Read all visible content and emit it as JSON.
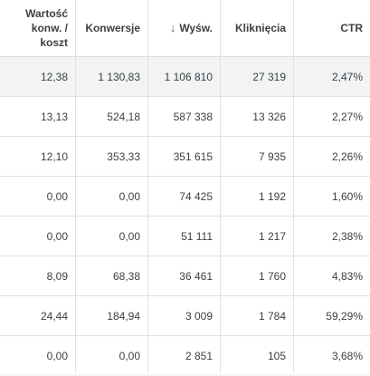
{
  "headers": {
    "value_per_cost": "Wartość konw. / koszt",
    "conversions": "Konwersje",
    "impressions": "Wyśw.",
    "clicks": "Kliknięcia",
    "ctr": "CTR"
  },
  "sort": {
    "column": "impressions",
    "icon": "arrow-down-icon",
    "glyph": "↓"
  },
  "rows": [
    {
      "value_per_cost": "12,38",
      "conversions": "1 130,83",
      "impressions": "1 106 810",
      "clicks": "27 319",
      "ctr": "2,47%"
    },
    {
      "value_per_cost": "13,13",
      "conversions": "524,18",
      "impressions": "587 338",
      "clicks": "13 326",
      "ctr": "2,27%"
    },
    {
      "value_per_cost": "12,10",
      "conversions": "353,33",
      "impressions": "351 615",
      "clicks": "7 935",
      "ctr": "2,26%"
    },
    {
      "value_per_cost": "0,00",
      "conversions": "0,00",
      "impressions": "74 425",
      "clicks": "1 192",
      "ctr": "1,60%"
    },
    {
      "value_per_cost": "0,00",
      "conversions": "0,00",
      "impressions": "51 111",
      "clicks": "1 217",
      "ctr": "2,38%"
    },
    {
      "value_per_cost": "8,09",
      "conversions": "68,38",
      "impressions": "36 461",
      "clicks": "1 760",
      "ctr": "4,83%"
    },
    {
      "value_per_cost": "24,44",
      "conversions": "184,94",
      "impressions": "3 009",
      "clicks": "1 784",
      "ctr": "59,29%"
    },
    {
      "value_per_cost": "0,00",
      "conversions": "0,00",
      "impressions": "2 851",
      "clicks": "105",
      "ctr": "3,68%"
    }
  ],
  "colors": {
    "highlight_row": "#f1f3f4",
    "grid": "#e0e0e0",
    "text": "#3c4043"
  }
}
